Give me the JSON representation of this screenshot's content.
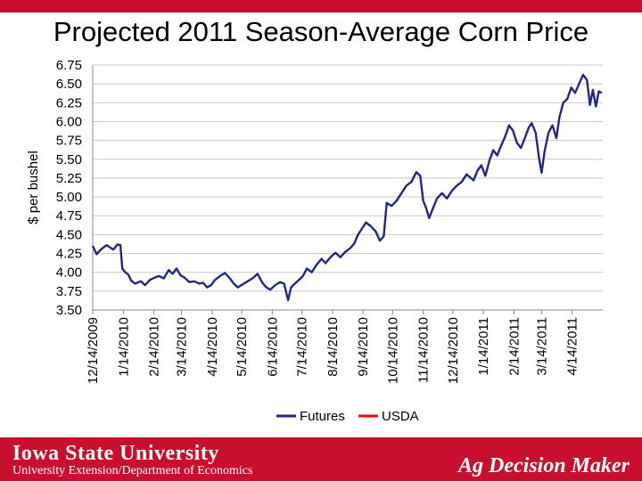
{
  "slide": {
    "title": "Projected 2011 Season-Average Corn Price"
  },
  "footer": {
    "logo_text": "Iowa State University",
    "subtitle": "University Extension/Department of Economics",
    "brand": "Ag Decision Maker",
    "color": "#c8102e"
  },
  "chart_data": {
    "type": "line",
    "ylabel": "$ per bushel",
    "ylim": [
      3.5,
      6.75
    ],
    "yticks": [
      "3.50",
      "3.75",
      "4.00",
      "4.25",
      "4.50",
      "4.75",
      "5.00",
      "5.25",
      "5.50",
      "5.75",
      "6.00",
      "6.25",
      "6.50",
      "6.75"
    ],
    "xticks": [
      "12/14/2009",
      "1/14/2010",
      "2/14/2010",
      "3/14/2010",
      "4/14/2010",
      "5/14/2010",
      "6/14/2010",
      "7/14/2010",
      "8/14/2010",
      "9/14/2010",
      "10/14/2010",
      "11/14/2010",
      "12/14/2010",
      "1/14/2011",
      "2/14/2011",
      "3/14/2011",
      "4/14/2011"
    ],
    "grid": true,
    "legend_position": "bottom",
    "series": [
      {
        "name": "Futures",
        "color": "#1f2a7a",
        "points": [
          [
            "2009-12-14",
            4.35
          ],
          [
            "2009-12-18",
            4.24
          ],
          [
            "2009-12-22",
            4.3
          ],
          [
            "2009-12-28",
            4.36
          ],
          [
            "2010-01-04",
            4.3
          ],
          [
            "2010-01-08",
            4.37
          ],
          [
            "2010-01-11",
            4.36
          ],
          [
            "2010-01-13",
            4.05
          ],
          [
            "2010-01-16",
            4.0
          ],
          [
            "2010-01-19",
            3.97
          ],
          [
            "2010-01-22",
            3.89
          ],
          [
            "2010-01-26",
            3.85
          ],
          [
            "2010-02-01",
            3.88
          ],
          [
            "2010-02-05",
            3.83
          ],
          [
            "2010-02-10",
            3.9
          ],
          [
            "2010-02-15",
            3.93
          ],
          [
            "2010-02-19",
            3.95
          ],
          [
            "2010-02-24",
            3.92
          ],
          [
            "2010-03-01",
            4.03
          ],
          [
            "2010-03-05",
            3.98
          ],
          [
            "2010-03-09",
            4.05
          ],
          [
            "2010-03-13",
            3.96
          ],
          [
            "2010-03-17",
            3.93
          ],
          [
            "2010-03-22",
            3.87
          ],
          [
            "2010-03-27",
            3.88
          ],
          [
            "2010-04-01",
            3.85
          ],
          [
            "2010-04-05",
            3.86
          ],
          [
            "2010-04-09",
            3.8
          ],
          [
            "2010-04-13",
            3.83
          ],
          [
            "2010-04-17",
            3.9
          ],
          [
            "2010-04-22",
            3.95
          ],
          [
            "2010-04-27",
            3.99
          ],
          [
            "2010-05-02",
            3.92
          ],
          [
            "2010-05-06",
            3.85
          ],
          [
            "2010-05-10",
            3.8
          ],
          [
            "2010-05-15",
            3.84
          ],
          [
            "2010-05-20",
            3.88
          ],
          [
            "2010-05-25",
            3.92
          ],
          [
            "2010-05-30",
            3.98
          ],
          [
            "2010-06-04",
            3.86
          ],
          [
            "2010-06-08",
            3.8
          ],
          [
            "2010-06-12",
            3.77
          ],
          [
            "2010-06-17",
            3.83
          ],
          [
            "2010-06-22",
            3.87
          ],
          [
            "2010-06-26",
            3.85
          ],
          [
            "2010-06-30",
            3.63
          ],
          [
            "2010-07-03",
            3.8
          ],
          [
            "2010-07-07",
            3.85
          ],
          [
            "2010-07-11",
            3.9
          ],
          [
            "2010-07-15",
            3.95
          ],
          [
            "2010-07-19",
            4.05
          ],
          [
            "2010-07-24",
            4.0
          ],
          [
            "2010-07-29",
            4.1
          ],
          [
            "2010-08-03",
            4.18
          ],
          [
            "2010-08-07",
            4.12
          ],
          [
            "2010-08-12",
            4.2
          ],
          [
            "2010-08-17",
            4.26
          ],
          [
            "2010-08-22",
            4.2
          ],
          [
            "2010-08-27",
            4.27
          ],
          [
            "2010-09-01",
            4.32
          ],
          [
            "2010-09-05",
            4.38
          ],
          [
            "2010-09-09",
            4.5
          ],
          [
            "2010-09-13",
            4.58
          ],
          [
            "2010-09-17",
            4.66
          ],
          [
            "2010-09-22",
            4.61
          ],
          [
            "2010-09-27",
            4.54
          ],
          [
            "2010-10-01",
            4.42
          ],
          [
            "2010-10-05",
            4.48
          ],
          [
            "2010-10-08",
            4.92
          ],
          [
            "2010-10-13",
            4.88
          ],
          [
            "2010-10-18",
            4.95
          ],
          [
            "2010-10-23",
            5.05
          ],
          [
            "2010-10-28",
            5.15
          ],
          [
            "2010-11-02",
            5.2
          ],
          [
            "2010-11-07",
            5.33
          ],
          [
            "2010-11-11",
            5.28
          ],
          [
            "2010-11-14",
            4.95
          ],
          [
            "2010-11-17",
            4.85
          ],
          [
            "2010-11-20",
            4.72
          ],
          [
            "2010-11-23",
            4.82
          ],
          [
            "2010-11-28",
            4.98
          ],
          [
            "2010-12-03",
            5.05
          ],
          [
            "2010-12-08",
            4.98
          ],
          [
            "2010-12-13",
            5.08
          ],
          [
            "2010-12-18",
            5.15
          ],
          [
            "2010-12-23",
            5.2
          ],
          [
            "2010-12-28",
            5.3
          ],
          [
            "2011-01-04",
            5.22
          ],
          [
            "2011-01-08",
            5.35
          ],
          [
            "2011-01-12",
            5.42
          ],
          [
            "2011-01-16",
            5.28
          ],
          [
            "2011-01-20",
            5.48
          ],
          [
            "2011-01-24",
            5.62
          ],
          [
            "2011-01-28",
            5.55
          ],
          [
            "2011-02-01",
            5.68
          ],
          [
            "2011-02-05",
            5.8
          ],
          [
            "2011-02-09",
            5.95
          ],
          [
            "2011-02-13",
            5.88
          ],
          [
            "2011-02-17",
            5.72
          ],
          [
            "2011-02-21",
            5.65
          ],
          [
            "2011-02-25",
            5.78
          ],
          [
            "2011-03-01",
            5.92
          ],
          [
            "2011-03-04",
            5.98
          ],
          [
            "2011-03-08",
            5.85
          ],
          [
            "2011-03-11",
            5.55
          ],
          [
            "2011-03-14",
            5.32
          ],
          [
            "2011-03-17",
            5.6
          ],
          [
            "2011-03-21",
            5.85
          ],
          [
            "2011-03-25",
            5.95
          ],
          [
            "2011-03-29",
            5.78
          ],
          [
            "2011-04-01",
            6.05
          ],
          [
            "2011-04-05",
            6.25
          ],
          [
            "2011-04-09",
            6.3
          ],
          [
            "2011-04-13",
            6.45
          ],
          [
            "2011-04-17",
            6.38
          ],
          [
            "2011-04-21",
            6.5
          ],
          [
            "2011-04-25",
            6.62
          ],
          [
            "2011-04-29",
            6.55
          ],
          [
            "2011-05-02",
            6.22
          ],
          [
            "2011-05-05",
            6.42
          ],
          [
            "2011-05-08",
            6.2
          ],
          [
            "2011-05-11",
            6.4
          ],
          [
            "2011-05-14",
            6.38
          ]
        ]
      },
      {
        "name": "USDA",
        "color": "#ff0000",
        "points": []
      }
    ]
  }
}
